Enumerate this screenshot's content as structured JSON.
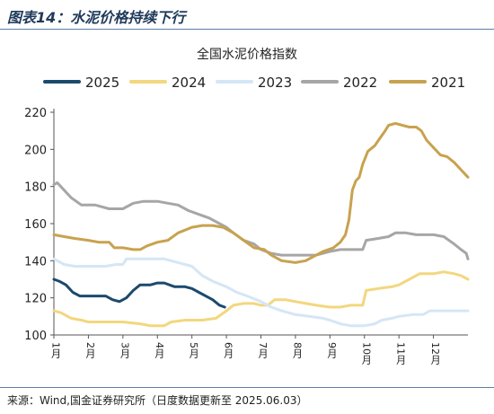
{
  "figure_label": "图表14：水泥价格持续下行",
  "source": "来源：Wind,国金证券研究所（日度数据更新至 2025.06.03）",
  "chart_data": {
    "type": "line",
    "title": "全国水泥价格指数",
    "xlabel": "",
    "ylabel": "",
    "x_unit": "month",
    "xlim": [
      1,
      13
    ],
    "ylim": [
      100,
      220
    ],
    "yticks": [
      100,
      120,
      140,
      160,
      180,
      200,
      220
    ],
    "xticks": [
      {
        "x": 1,
        "label": "1月"
      },
      {
        "x": 2,
        "label": "2月"
      },
      {
        "x": 3,
        "label": "3月"
      },
      {
        "x": 4,
        "label": "4月"
      },
      {
        "x": 5,
        "label": "5月"
      },
      {
        "x": 6,
        "label": "6月"
      },
      {
        "x": 7,
        "label": "7月"
      },
      {
        "x": 8,
        "label": "8月"
      },
      {
        "x": 9,
        "label": "9月"
      },
      {
        "x": 10,
        "label": "10月"
      },
      {
        "x": 11,
        "label": "11月"
      },
      {
        "x": 12,
        "label": "12月"
      }
    ],
    "grid": false,
    "legend_position": "top",
    "series": [
      {
        "name": "2025",
        "color": "#1b4a6e",
        "points": [
          [
            1.0,
            130
          ],
          [
            1.15,
            129
          ],
          [
            1.35,
            127
          ],
          [
            1.55,
            123
          ],
          [
            1.75,
            121
          ],
          [
            2.2,
            121
          ],
          [
            2.5,
            121
          ],
          [
            2.7,
            119
          ],
          [
            2.9,
            118
          ],
          [
            3.1,
            120
          ],
          [
            3.3,
            124
          ],
          [
            3.5,
            127
          ],
          [
            3.8,
            127
          ],
          [
            4.0,
            128
          ],
          [
            4.2,
            128
          ],
          [
            4.5,
            126
          ],
          [
            4.8,
            126
          ],
          [
            5.0,
            125
          ],
          [
            5.2,
            123
          ],
          [
            5.4,
            121
          ],
          [
            5.6,
            119
          ],
          [
            5.8,
            116
          ],
          [
            5.95,
            115
          ]
        ]
      },
      {
        "name": "2024",
        "color": "#f2d77e",
        "points": [
          [
            1.0,
            113
          ],
          [
            1.2,
            112
          ],
          [
            1.5,
            109
          ],
          [
            1.8,
            108
          ],
          [
            2.0,
            107
          ],
          [
            2.5,
            107
          ],
          [
            3.0,
            107
          ],
          [
            3.5,
            106
          ],
          [
            3.8,
            105
          ],
          [
            4.2,
            105
          ],
          [
            4.4,
            107
          ],
          [
            4.8,
            108
          ],
          [
            5.3,
            108
          ],
          [
            5.7,
            109
          ],
          [
            6.0,
            113
          ],
          [
            6.2,
            116
          ],
          [
            6.5,
            117
          ],
          [
            6.8,
            117
          ],
          [
            7.0,
            116
          ],
          [
            7.2,
            116
          ],
          [
            7.4,
            119
          ],
          [
            7.7,
            119
          ],
          [
            8.0,
            118
          ],
          [
            8.3,
            117
          ],
          [
            8.6,
            116
          ],
          [
            9.0,
            115
          ],
          [
            9.3,
            115
          ],
          [
            9.6,
            116
          ],
          [
            9.95,
            116
          ],
          [
            10.05,
            124
          ],
          [
            10.4,
            125
          ],
          [
            10.8,
            126
          ],
          [
            11.0,
            127
          ],
          [
            11.3,
            130
          ],
          [
            11.6,
            133
          ],
          [
            12.0,
            133
          ],
          [
            12.3,
            134
          ],
          [
            12.6,
            133
          ],
          [
            12.8,
            132
          ],
          [
            13.0,
            130
          ]
        ]
      },
      {
        "name": "2023",
        "color": "#d5e6f5",
        "points": [
          [
            1.0,
            141
          ],
          [
            1.3,
            138
          ],
          [
            1.6,
            137
          ],
          [
            2.0,
            137
          ],
          [
            2.5,
            137
          ],
          [
            2.8,
            138
          ],
          [
            3.0,
            138
          ],
          [
            3.1,
            141
          ],
          [
            3.4,
            141
          ],
          [
            3.8,
            141
          ],
          [
            4.2,
            141
          ],
          [
            4.6,
            139
          ],
          [
            5.0,
            137
          ],
          [
            5.3,
            132
          ],
          [
            5.6,
            129
          ],
          [
            6.0,
            126
          ],
          [
            6.3,
            123
          ],
          [
            6.6,
            121
          ],
          [
            7.0,
            118
          ],
          [
            7.3,
            115
          ],
          [
            7.6,
            113
          ],
          [
            8.0,
            111
          ],
          [
            8.4,
            110
          ],
          [
            8.8,
            109
          ],
          [
            9.0,
            108
          ],
          [
            9.3,
            106
          ],
          [
            9.6,
            105
          ],
          [
            9.8,
            105
          ],
          [
            10.0,
            105
          ],
          [
            10.3,
            106
          ],
          [
            10.5,
            108
          ],
          [
            10.8,
            109
          ],
          [
            11.0,
            110
          ],
          [
            11.4,
            111
          ],
          [
            11.7,
            111
          ],
          [
            11.9,
            113
          ],
          [
            12.2,
            113
          ],
          [
            12.6,
            113
          ],
          [
            13.0,
            113
          ]
        ]
      },
      {
        "name": "2022",
        "color": "#a6a6a6",
        "points": [
          [
            1.0,
            181
          ],
          [
            1.1,
            182
          ],
          [
            1.3,
            178
          ],
          [
            1.5,
            174
          ],
          [
            1.8,
            170
          ],
          [
            2.2,
            170
          ],
          [
            2.6,
            168
          ],
          [
            3.0,
            168
          ],
          [
            3.3,
            171
          ],
          [
            3.6,
            172
          ],
          [
            4.0,
            172
          ],
          [
            4.3,
            171
          ],
          [
            4.6,
            170
          ],
          [
            4.9,
            167
          ],
          [
            5.2,
            165
          ],
          [
            5.5,
            163
          ],
          [
            5.8,
            160
          ],
          [
            6.0,
            158
          ],
          [
            6.2,
            155
          ],
          [
            6.5,
            151
          ],
          [
            6.8,
            149
          ],
          [
            7.0,
            146
          ],
          [
            7.3,
            144
          ],
          [
            7.6,
            143
          ],
          [
            8.0,
            143
          ],
          [
            8.3,
            143
          ],
          [
            8.6,
            143
          ],
          [
            8.8,
            144
          ],
          [
            9.0,
            145
          ],
          [
            9.3,
            146
          ],
          [
            9.6,
            146
          ],
          [
            9.8,
            146
          ],
          [
            9.95,
            146
          ],
          [
            10.05,
            151
          ],
          [
            10.4,
            152
          ],
          [
            10.7,
            153
          ],
          [
            10.9,
            155
          ],
          [
            11.2,
            155
          ],
          [
            11.5,
            154
          ],
          [
            11.8,
            154
          ],
          [
            12.0,
            154
          ],
          [
            12.3,
            153
          ],
          [
            12.6,
            149
          ],
          [
            12.8,
            146
          ],
          [
            12.95,
            144
          ],
          [
            13.0,
            141
          ]
        ]
      },
      {
        "name": "2021",
        "color": "#c8a24e",
        "points": [
          [
            1.0,
            154
          ],
          [
            1.3,
            153
          ],
          [
            1.6,
            152
          ],
          [
            2.0,
            151
          ],
          [
            2.3,
            150
          ],
          [
            2.6,
            150
          ],
          [
            2.75,
            147
          ],
          [
            3.0,
            147
          ],
          [
            3.3,
            146
          ],
          [
            3.5,
            146
          ],
          [
            3.7,
            148
          ],
          [
            4.0,
            150
          ],
          [
            4.3,
            151
          ],
          [
            4.6,
            155
          ],
          [
            5.0,
            158
          ],
          [
            5.3,
            159
          ],
          [
            5.6,
            159
          ],
          [
            5.9,
            158
          ],
          [
            6.2,
            155
          ],
          [
            6.5,
            151
          ],
          [
            6.8,
            147
          ],
          [
            7.1,
            146
          ],
          [
            7.3,
            143
          ],
          [
            7.6,
            140
          ],
          [
            8.0,
            139
          ],
          [
            8.3,
            140
          ],
          [
            8.5,
            142
          ],
          [
            8.8,
            145
          ],
          [
            9.1,
            147
          ],
          [
            9.3,
            150
          ],
          [
            9.45,
            154
          ],
          [
            9.55,
            162
          ],
          [
            9.65,
            178
          ],
          [
            9.75,
            183
          ],
          [
            9.85,
            185
          ],
          [
            9.95,
            192
          ],
          [
            10.1,
            199
          ],
          [
            10.3,
            202
          ],
          [
            10.45,
            206
          ],
          [
            10.6,
            210
          ],
          [
            10.7,
            213
          ],
          [
            10.9,
            214
          ],
          [
            11.1,
            213
          ],
          [
            11.3,
            212
          ],
          [
            11.5,
            212
          ],
          [
            11.65,
            210
          ],
          [
            11.8,
            205
          ],
          [
            12.0,
            201
          ],
          [
            12.2,
            197
          ],
          [
            12.4,
            196
          ],
          [
            12.6,
            193
          ],
          [
            12.8,
            189
          ],
          [
            12.95,
            186
          ],
          [
            13.0,
            185
          ]
        ]
      }
    ]
  }
}
